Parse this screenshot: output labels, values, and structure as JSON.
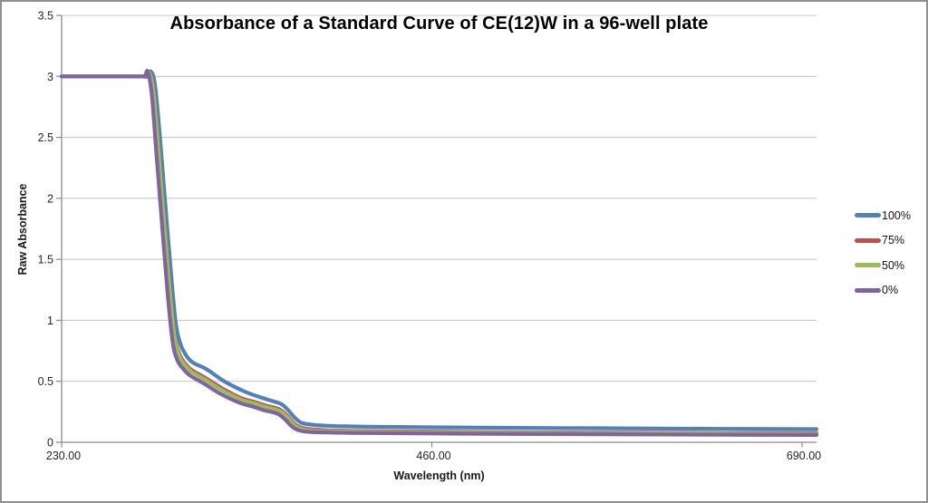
{
  "frame": {
    "border_color": "#8f8f8f",
    "background": "#ffffff"
  },
  "chart_data": {
    "type": "line",
    "title": "Absorbance of a Standard Curve of CE(12)W in a 96-well plate",
    "xlabel": "Wavelength (nm)",
    "ylabel": "Raw Absorbance",
    "xlim": [
      230,
      699.5
    ],
    "ylim": [
      0,
      3.5
    ],
    "grid": true,
    "grid_color": "#c9c9c9",
    "axis_color": "#8a8a8a",
    "tick_label_color": "#262626",
    "legend_position": "right",
    "x_ticks": [
      {
        "value": 230,
        "label": "230.00"
      },
      {
        "value": 460,
        "label": "460.00"
      },
      {
        "value": 690,
        "label": "690.00"
      }
    ],
    "y_ticks": [
      {
        "value": 0,
        "label": "0"
      },
      {
        "value": 0.5,
        "label": "0.5"
      },
      {
        "value": 1,
        "label": "1"
      },
      {
        "value": 1.5,
        "label": "1.5"
      },
      {
        "value": 2,
        "label": "2"
      },
      {
        "value": 2.5,
        "label": "2.5"
      },
      {
        "value": 3,
        "label": "3"
      },
      {
        "value": 3.5,
        "label": "3.5"
      }
    ],
    "series": [
      {
        "name": "100%",
        "color": "#4F81BD",
        "points": [
          [
            230,
            3.0
          ],
          [
            280,
            3.0
          ],
          [
            283.5,
            3.0
          ],
          [
            285.5,
            3.04
          ],
          [
            288,
            2.93
          ],
          [
            291,
            2.52
          ],
          [
            294,
            2.02
          ],
          [
            298,
            1.38
          ],
          [
            301,
            0.97
          ],
          [
            304,
            0.8
          ],
          [
            308,
            0.7
          ],
          [
            312,
            0.65
          ],
          [
            320,
            0.6
          ],
          [
            331,
            0.5
          ],
          [
            343,
            0.42
          ],
          [
            351,
            0.38
          ],
          [
            358,
            0.35
          ],
          [
            363,
            0.33
          ],
          [
            367,
            0.31
          ],
          [
            371,
            0.26
          ],
          [
            375,
            0.2
          ],
          [
            379,
            0.16
          ],
          [
            385,
            0.145
          ],
          [
            395,
            0.135
          ],
          [
            420,
            0.128
          ],
          [
            470,
            0.122
          ],
          [
            560,
            0.115
          ],
          [
            640,
            0.11
          ],
          [
            699,
            0.108
          ]
        ]
      },
      {
        "name": "75%",
        "color": "#C0504D",
        "points": [
          [
            230,
            3.0
          ],
          [
            279,
            3.0
          ],
          [
            282.5,
            3.0
          ],
          [
            284.5,
            3.035
          ],
          [
            287,
            2.9
          ],
          [
            290,
            2.45
          ],
          [
            293,
            1.95
          ],
          [
            297,
            1.3
          ],
          [
            300,
            0.9
          ],
          [
            303,
            0.73
          ],
          [
            307,
            0.64
          ],
          [
            311,
            0.59
          ],
          [
            319,
            0.53
          ],
          [
            330,
            0.44
          ],
          [
            342,
            0.36
          ],
          [
            350,
            0.33
          ],
          [
            357,
            0.3
          ],
          [
            362,
            0.285
          ],
          [
            366,
            0.265
          ],
          [
            370,
            0.22
          ],
          [
            374,
            0.16
          ],
          [
            378,
            0.125
          ],
          [
            384,
            0.108
          ],
          [
            395,
            0.098
          ],
          [
            420,
            0.092
          ],
          [
            470,
            0.086
          ],
          [
            560,
            0.08
          ],
          [
            640,
            0.076
          ],
          [
            699,
            0.074
          ]
        ]
      },
      {
        "name": "50%",
        "color": "#9BBB59",
        "points": [
          [
            230,
            3.0
          ],
          [
            279,
            3.0
          ],
          [
            282.5,
            3.0
          ],
          [
            284.5,
            3.03
          ],
          [
            287,
            2.88
          ],
          [
            290,
            2.42
          ],
          [
            293,
            1.92
          ],
          [
            297,
            1.27
          ],
          [
            300,
            0.88
          ],
          [
            303,
            0.71
          ],
          [
            307,
            0.625
          ],
          [
            311,
            0.575
          ],
          [
            319,
            0.515
          ],
          [
            330,
            0.425
          ],
          [
            342,
            0.348
          ],
          [
            350,
            0.318
          ],
          [
            357,
            0.288
          ],
          [
            362,
            0.273
          ],
          [
            366,
            0.253
          ],
          [
            370,
            0.208
          ],
          [
            374,
            0.148
          ],
          [
            378,
            0.115
          ],
          [
            384,
            0.098
          ],
          [
            395,
            0.09
          ],
          [
            420,
            0.085
          ],
          [
            470,
            0.08
          ],
          [
            560,
            0.075
          ],
          [
            640,
            0.071
          ],
          [
            699,
            0.069
          ]
        ]
      },
      {
        "name": "0%",
        "color": "#8064A2",
        "points": [
          [
            230,
            3.0
          ],
          [
            278,
            3.0
          ],
          [
            281.5,
            3.0
          ],
          [
            283.5,
            3.04
          ],
          [
            286,
            2.85
          ],
          [
            289,
            2.35
          ],
          [
            292,
            1.85
          ],
          [
            296,
            1.2
          ],
          [
            299,
            0.82
          ],
          [
            302,
            0.67
          ],
          [
            306,
            0.595
          ],
          [
            310,
            0.545
          ],
          [
            318,
            0.485
          ],
          [
            329,
            0.395
          ],
          [
            341,
            0.322
          ],
          [
            349,
            0.292
          ],
          [
            356,
            0.262
          ],
          [
            361,
            0.247
          ],
          [
            365,
            0.228
          ],
          [
            369,
            0.185
          ],
          [
            373,
            0.13
          ],
          [
            377,
            0.1
          ],
          [
            383,
            0.086
          ],
          [
            395,
            0.08
          ],
          [
            420,
            0.076
          ],
          [
            470,
            0.071
          ],
          [
            560,
            0.066
          ],
          [
            640,
            0.062
          ],
          [
            699,
            0.06
          ]
        ]
      }
    ]
  }
}
